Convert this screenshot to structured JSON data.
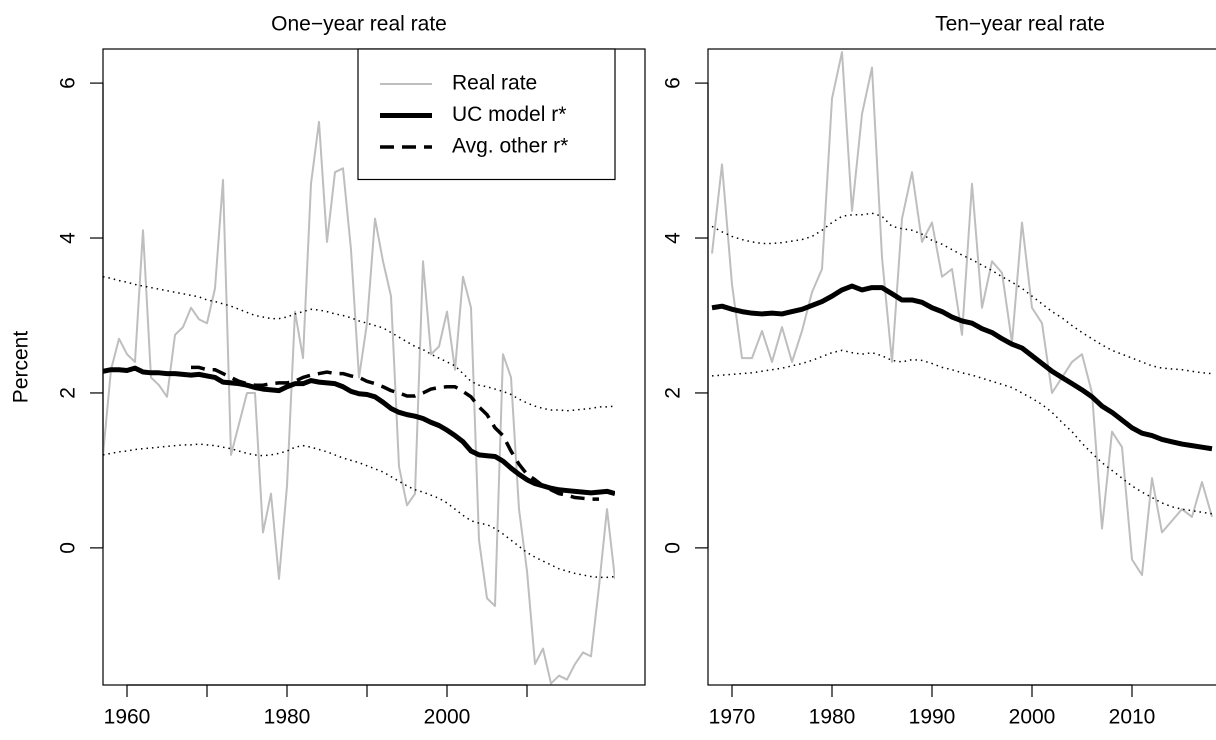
{
  "chart_data": [
    {
      "type": "line",
      "title": "One−year real rate",
      "ylabel": "Percent",
      "legend": "topright",
      "x": [
        1957,
        1958,
        1959,
        1960,
        1961,
        1962,
        1963,
        1964,
        1965,
        1966,
        1967,
        1968,
        1969,
        1970,
        1971,
        1972,
        1973,
        1974,
        1975,
        1976,
        1977,
        1978,
        1979,
        1980,
        1981,
        1982,
        1983,
        1984,
        1985,
        1986,
        1987,
        1988,
        1989,
        1990,
        1991,
        1992,
        1993,
        1994,
        1995,
        1996,
        1997,
        1998,
        1999,
        2000,
        2001,
        2002,
        2003,
        2004,
        2005,
        2006,
        2007,
        2008,
        2009,
        2010,
        2011,
        2012,
        2013,
        2014,
        2015,
        2016,
        2017,
        2018,
        2019,
        2020,
        2021
      ],
      "xlim": [
        1957,
        2021
      ],
      "ylim": [
        -1.77,
        6.44
      ],
      "xticks": [
        1960,
        1980,
        2000
      ],
      "xminorticks": [
        1970,
        1990,
        2010
      ],
      "yticks": [
        0,
        2,
        4,
        6
      ],
      "series": [
        {
          "name": "Real rate",
          "color": "#bebebe",
          "width": 2,
          "dash": "solid",
          "values": [
            1.2,
            2.3,
            2.7,
            2.5,
            2.4,
            4.1,
            2.2,
            2.1,
            1.95,
            2.75,
            2.85,
            3.1,
            2.95,
            2.9,
            3.35,
            4.75,
            1.2,
            1.6,
            2.0,
            2.0,
            0.2,
            0.7,
            -0.4,
            0.8,
            3.05,
            2.45,
            4.7,
            5.5,
            3.95,
            4.85,
            4.9,
            3.85,
            2.2,
            2.9,
            4.25,
            3.7,
            3.25,
            1.05,
            0.55,
            0.7,
            3.7,
            2.5,
            2.6,
            3.05,
            2.3,
            3.5,
            3.1,
            0.1,
            -0.65,
            -0.75,
            2.5,
            2.2,
            0.5,
            -0.3,
            -1.5,
            -1.3,
            -1.75,
            -1.65,
            -1.7,
            -1.5,
            -1.35,
            -1.4,
            -0.5,
            0.5,
            -0.4
          ]
        },
        {
          "name": "UC model r*",
          "color": "#000000",
          "width": 5,
          "dash": "solid",
          "values": [
            2.28,
            2.3,
            2.3,
            2.29,
            2.32,
            2.27,
            2.26,
            2.26,
            2.25,
            2.25,
            2.24,
            2.23,
            2.24,
            2.22,
            2.2,
            2.14,
            2.13,
            2.12,
            2.1,
            2.07,
            2.05,
            2.04,
            2.03,
            2.08,
            2.12,
            2.12,
            2.16,
            2.14,
            2.13,
            2.12,
            2.08,
            2.02,
            1.99,
            1.98,
            1.95,
            1.88,
            1.8,
            1.75,
            1.72,
            1.7,
            1.67,
            1.62,
            1.58,
            1.52,
            1.45,
            1.37,
            1.25,
            1.2,
            1.19,
            1.18,
            1.12,
            1.03,
            0.95,
            0.88,
            0.83,
            0.8,
            0.77,
            0.75,
            0.74,
            0.73,
            0.72,
            0.71,
            0.72,
            0.73,
            0.7
          ]
        },
        {
          "name": "Avg. other r*",
          "color": "#000000",
          "width": 3.5,
          "dash": "dashed",
          "values": [
            null,
            null,
            null,
            null,
            null,
            null,
            null,
            null,
            null,
            null,
            null,
            2.33,
            2.33,
            2.3,
            2.3,
            2.25,
            2.2,
            2.15,
            2.12,
            2.1,
            2.1,
            2.12,
            2.13,
            2.13,
            2.15,
            2.2,
            2.23,
            2.25,
            2.27,
            2.25,
            2.25,
            2.22,
            2.2,
            2.15,
            2.12,
            2.08,
            2.03,
            2.0,
            1.96,
            1.96,
            2.0,
            2.05,
            2.07,
            2.08,
            2.08,
            2.02,
            1.95,
            1.82,
            1.72,
            1.55,
            1.45,
            1.25,
            1.08,
            0.95,
            0.88,
            0.8,
            0.75,
            0.7,
            0.68,
            0.65,
            0.64,
            0.63,
            0.63,
            null,
            null
          ]
        },
        {
          "color": "#000000",
          "width": 1.5,
          "dash": "dotted",
          "values": [
            3.5,
            3.48,
            3.45,
            3.43,
            3.4,
            3.38,
            3.36,
            3.34,
            3.32,
            3.3,
            3.28,
            3.26,
            3.24,
            3.2,
            3.18,
            3.15,
            3.12,
            3.08,
            3.04,
            3.0,
            2.98,
            2.96,
            2.96,
            2.98,
            3.02,
            3.05,
            3.08,
            3.07,
            3.05,
            3.02,
            3.0,
            2.97,
            2.93,
            2.9,
            2.87,
            2.84,
            2.78,
            2.72,
            2.66,
            2.6,
            2.56,
            2.5,
            2.45,
            2.4,
            2.35,
            2.25,
            2.15,
            2.1,
            2.08,
            2.05,
            2.02,
            1.98,
            1.92,
            1.87,
            1.83,
            1.8,
            1.78,
            1.78,
            1.77,
            1.78,
            1.79,
            1.8,
            1.82,
            1.82,
            1.83
          ]
        },
        {
          "color": "#000000",
          "width": 1.5,
          "dash": "dotted",
          "values": [
            1.2,
            1.22,
            1.24,
            1.25,
            1.27,
            1.28,
            1.29,
            1.3,
            1.31,
            1.32,
            1.33,
            1.33,
            1.34,
            1.33,
            1.32,
            1.3,
            1.28,
            1.25,
            1.22,
            1.2,
            1.19,
            1.2,
            1.22,
            1.25,
            1.3,
            1.32,
            1.3,
            1.27,
            1.24,
            1.2,
            1.16,
            1.13,
            1.1,
            1.06,
            1.02,
            0.98,
            0.92,
            0.86,
            0.8,
            0.75,
            0.72,
            0.68,
            0.64,
            0.58,
            0.5,
            0.42,
            0.35,
            0.32,
            0.3,
            0.25,
            0.18,
            0.1,
            0.02,
            -0.06,
            -0.12,
            -0.17,
            -0.22,
            -0.27,
            -0.3,
            -0.33,
            -0.35,
            -0.37,
            -0.38,
            -0.38,
            -0.37
          ]
        }
      ]
    },
    {
      "type": "line",
      "title": "Ten−year real rate",
      "x": [
        1968,
        1969,
        1970,
        1971,
        1972,
        1973,
        1974,
        1975,
        1976,
        1977,
        1978,
        1979,
        1980,
        1981,
        1982,
        1983,
        1984,
        1985,
        1986,
        1987,
        1988,
        1989,
        1990,
        1991,
        1992,
        1993,
        1994,
        1995,
        1996,
        1997,
        1998,
        1999,
        2000,
        2001,
        2002,
        2003,
        2004,
        2005,
        2006,
        2007,
        2008,
        2009,
        2010,
        2011,
        2012,
        2013,
        2014,
        2015,
        2016,
        2017,
        2018
      ],
      "xlim": [
        1967.6,
        2018.4
      ],
      "ylim": [
        -1.77,
        6.44
      ],
      "xticks": [
        1970,
        1980,
        1990,
        2000,
        2010
      ],
      "yticks": [
        0,
        2,
        4,
        6
      ],
      "series": [
        {
          "color": "#bebebe",
          "width": 2,
          "dash": "solid",
          "values": [
            3.8,
            4.95,
            3.4,
            2.45,
            2.45,
            2.8,
            2.4,
            2.85,
            2.4,
            2.8,
            3.3,
            3.6,
            5.8,
            6.4,
            4.35,
            5.6,
            6.2,
            3.75,
            2.4,
            4.25,
            4.85,
            3.95,
            4.2,
            3.5,
            3.6,
            2.75,
            4.7,
            3.1,
            3.7,
            3.55,
            2.65,
            4.2,
            3.1,
            2.9,
            2.0,
            2.2,
            2.4,
            2.5,
            2.0,
            0.25,
            1.5,
            1.3,
            -0.15,
            -0.35,
            0.9,
            0.2,
            0.35,
            0.5,
            0.4,
            0.85,
            0.4
          ]
        },
        {
          "color": "#000000",
          "width": 5,
          "dash": "solid",
          "values": [
            3.1,
            3.12,
            3.08,
            3.05,
            3.03,
            3.02,
            3.03,
            3.02,
            3.05,
            3.08,
            3.13,
            3.18,
            3.25,
            3.33,
            3.38,
            3.33,
            3.36,
            3.36,
            3.28,
            3.2,
            3.2,
            3.17,
            3.1,
            3.05,
            2.98,
            2.93,
            2.9,
            2.83,
            2.78,
            2.7,
            2.63,
            2.58,
            2.48,
            2.38,
            2.28,
            2.2,
            2.12,
            2.04,
            1.95,
            1.83,
            1.75,
            1.65,
            1.55,
            1.48,
            1.45,
            1.4,
            1.37,
            1.34,
            1.32,
            1.3,
            1.28
          ]
        },
        {
          "color": "#000000",
          "width": 1.5,
          "dash": "dotted",
          "values": [
            4.15,
            4.08,
            4.02,
            3.98,
            3.95,
            3.93,
            3.93,
            3.94,
            3.96,
            3.98,
            4.02,
            4.1,
            4.2,
            4.28,
            4.3,
            4.3,
            4.32,
            4.28,
            4.15,
            4.12,
            4.1,
            4.05,
            3.97,
            3.92,
            3.85,
            3.78,
            3.72,
            3.65,
            3.58,
            3.5,
            3.43,
            3.35,
            3.25,
            3.15,
            3.05,
            2.97,
            2.87,
            2.78,
            2.7,
            2.62,
            2.55,
            2.5,
            2.45,
            2.4,
            2.35,
            2.32,
            2.31,
            2.3,
            2.28,
            2.26,
            2.25
          ]
        },
        {
          "color": "#000000",
          "width": 1.5,
          "dash": "dotted",
          "values": [
            2.22,
            2.23,
            2.24,
            2.25,
            2.26,
            2.28,
            2.3,
            2.32,
            2.35,
            2.38,
            2.42,
            2.47,
            2.52,
            2.55,
            2.52,
            2.5,
            2.52,
            2.48,
            2.42,
            2.4,
            2.43,
            2.42,
            2.38,
            2.33,
            2.3,
            2.26,
            2.23,
            2.19,
            2.15,
            2.11,
            2.07,
            2.0,
            1.93,
            1.85,
            1.75,
            1.62,
            1.5,
            1.35,
            1.22,
            1.1,
            1.0,
            0.9,
            0.8,
            0.72,
            0.65,
            0.58,
            0.53,
            0.5,
            0.48,
            0.46,
            0.44
          ]
        }
      ]
    }
  ]
}
